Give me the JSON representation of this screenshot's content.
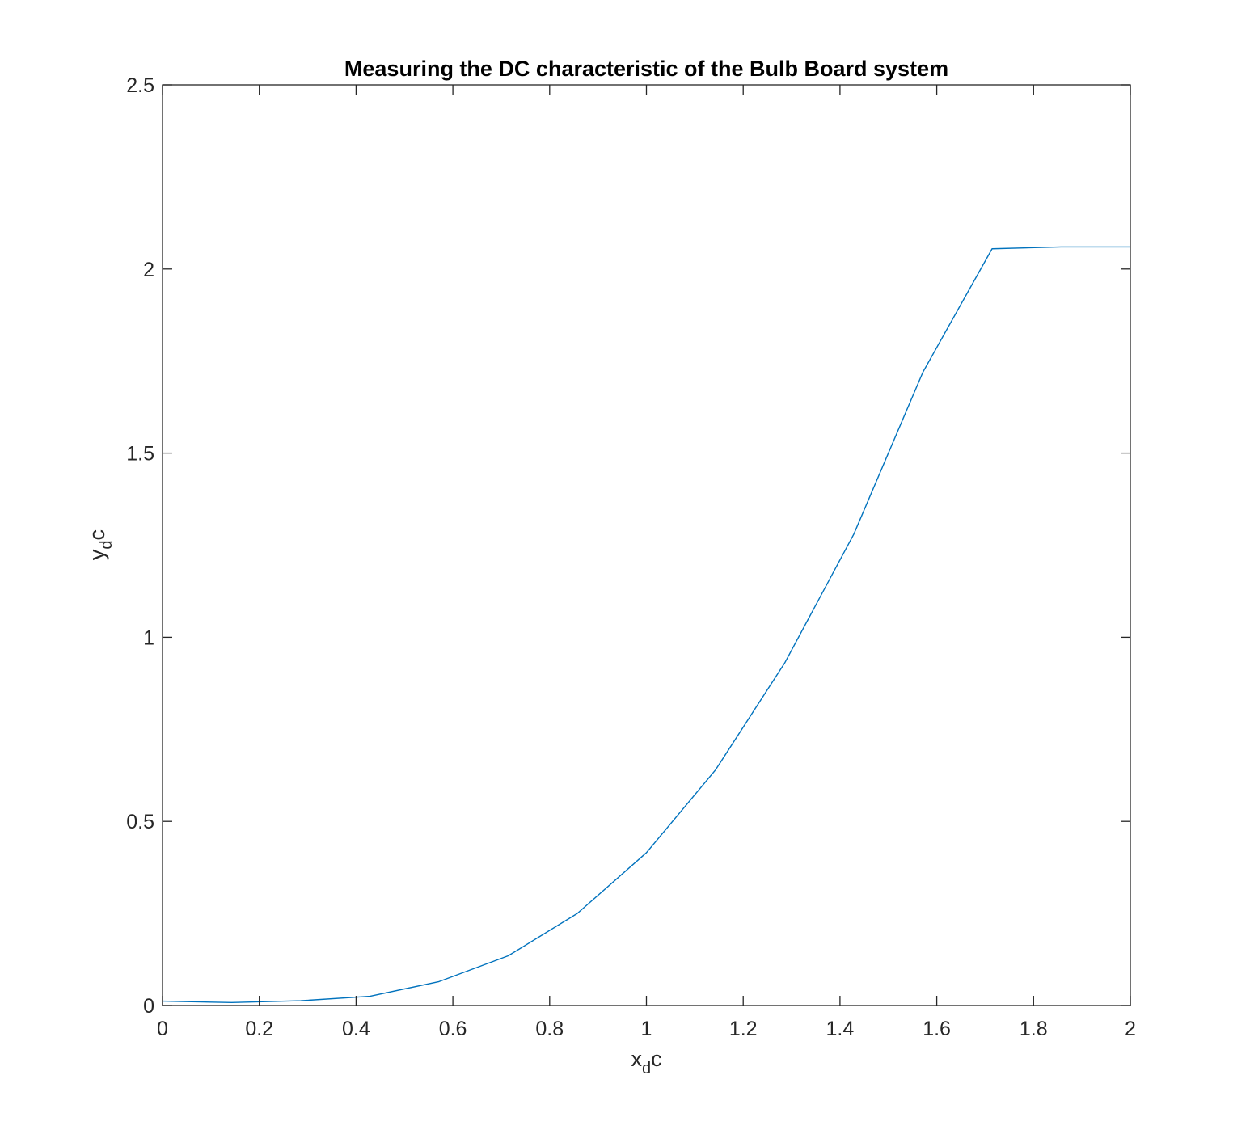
{
  "chart_data": {
    "type": "line",
    "title": "Measuring the DC characteristic of the Bulb Board system",
    "xlabel": {
      "base": "x",
      "sub": "d",
      "tail": "c"
    },
    "ylabel": {
      "base": "y",
      "sub": "d",
      "tail": "c"
    },
    "xlim": [
      0,
      2
    ],
    "ylim": [
      0,
      2.5
    ],
    "xticks": [
      0,
      0.2,
      0.4,
      0.6,
      0.8,
      1,
      1.2,
      1.4,
      1.6,
      1.8,
      2
    ],
    "xtick_labels": [
      "0",
      "0.2",
      "0.4",
      "0.6",
      "0.8",
      "1",
      "1.2",
      "1.4",
      "1.6",
      "1.8",
      "2"
    ],
    "yticks": [
      0,
      0.5,
      1,
      1.5,
      2,
      2.5
    ],
    "ytick_labels": [
      "0",
      "0.5",
      "1",
      "1.5",
      "2",
      "2.5"
    ],
    "grid": false,
    "series": [
      {
        "color": "#0072BD",
        "x": [
          0,
          0.1429,
          0.2857,
          0.4286,
          0.5714,
          0.7143,
          0.8571,
          1.0,
          1.1429,
          1.2857,
          1.4286,
          1.5714,
          1.7143,
          1.8571,
          2.0
        ],
        "y": [
          0.012,
          0.008,
          0.013,
          0.025,
          0.065,
          0.135,
          0.25,
          0.415,
          0.64,
          0.93,
          1.28,
          1.72,
          2.055,
          2.06,
          2.06
        ]
      }
    ]
  }
}
